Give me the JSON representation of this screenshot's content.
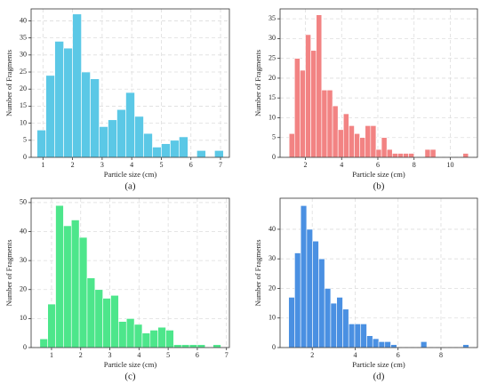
{
  "chart_data": [
    {
      "type": "histogram",
      "caption": "(a)",
      "xlabel": "Particle size (cm)",
      "ylabel": "Number of Fragments",
      "color": "#5bc8e6",
      "grid": true,
      "bins": [
        0.8,
        1.1,
        1.4,
        1.7,
        2.0,
        2.3,
        2.6,
        2.9,
        3.2,
        3.5,
        3.8,
        4.1,
        4.4,
        4.7,
        5.0,
        5.3,
        5.6,
        5.9,
        6.2,
        6.5,
        6.8,
        7.1
      ],
      "values": [
        8,
        24,
        34,
        32,
        42,
        25,
        23,
        9,
        11,
        14,
        19,
        12,
        7,
        3,
        4,
        5,
        6,
        0,
        2,
        0,
        2
      ],
      "xlim": [
        0.6,
        7.3
      ],
      "xticks": [
        1,
        2,
        3,
        4,
        5,
        6,
        7
      ],
      "ylim": [
        0,
        43.5
      ],
      "yticks": [
        0,
        5,
        10,
        15,
        20,
        25,
        30,
        35,
        40
      ]
    },
    {
      "type": "histogram",
      "caption": "(b)",
      "xlabel": "Particle size (cm)",
      "ylabel": "Number of Fragments",
      "color": "#f28383",
      "grid": true,
      "bins": [
        1.1,
        1.4,
        1.7,
        2.0,
        2.3,
        2.6,
        2.9,
        3.2,
        3.5,
        3.8,
        4.1,
        4.4,
        4.7,
        5.0,
        5.3,
        5.6,
        5.9,
        6.2,
        6.5,
        6.8,
        7.1,
        7.4,
        7.7,
        8.0,
        8.3,
        8.6,
        8.9,
        9.2,
        9.5,
        9.8,
        10.1,
        10.4,
        10.7,
        11.0
      ],
      "values": [
        6,
        25,
        22,
        31,
        27,
        36,
        17,
        17,
        13,
        7,
        11,
        8,
        6,
        5,
        8,
        8,
        2,
        5,
        2,
        1,
        1,
        1,
        1,
        0,
        0,
        2,
        2,
        0,
        0,
        0,
        0,
        0,
        1
      ],
      "xlim": [
        0.6,
        11.5
      ],
      "xticks": [
        2,
        4,
        6,
        8,
        10
      ],
      "ylim": [
        0,
        37.5
      ],
      "yticks": [
        0,
        5,
        10,
        15,
        20,
        25,
        30,
        35
      ]
    },
    {
      "type": "histogram",
      "caption": "(c)",
      "xlabel": "Particle size (cm)",
      "ylabel": "Number of Fragments",
      "color": "#4de68b",
      "grid": true,
      "bins": [
        0.6,
        0.87,
        1.14,
        1.41,
        1.68,
        1.95,
        2.22,
        2.49,
        2.76,
        3.03,
        3.3,
        3.57,
        3.84,
        4.11,
        4.38,
        4.65,
        4.92,
        5.19,
        5.46,
        5.73,
        6.0,
        6.27,
        6.54,
        6.81
      ],
      "values": [
        3,
        15,
        49,
        42,
        44,
        38,
        24,
        20,
        17,
        18,
        9,
        10,
        8,
        5,
        6,
        7,
        6,
        1,
        1,
        1,
        1,
        0,
        1
      ],
      "xlim": [
        0.3,
        7.1
      ],
      "xticks": [
        1,
        2,
        3,
        4,
        5,
        6,
        7
      ],
      "ylim": [
        0,
        51.5
      ],
      "yticks": [
        0,
        10,
        20,
        30,
        40,
        50
      ]
    },
    {
      "type": "histogram",
      "caption": "(d)",
      "xlabel": "Particle size (cm)",
      "ylabel": "Number of Fragments",
      "color": "#4a90e2",
      "grid": true,
      "bins": [
        0.9,
        1.18,
        1.46,
        1.74,
        2.02,
        2.3,
        2.58,
        2.86,
        3.14,
        3.42,
        3.7,
        3.98,
        4.26,
        4.54,
        4.82,
        5.1,
        5.38,
        5.66,
        5.94,
        6.22,
        6.5,
        6.78,
        7.06,
        7.34,
        7.62,
        7.9,
        8.18,
        8.46,
        8.74,
        9.02,
        9.3
      ],
      "values": [
        17,
        32,
        48,
        40,
        36,
        30,
        20,
        15,
        17,
        13,
        8,
        8,
        8,
        4,
        3,
        2,
        2,
        1,
        0,
        0,
        0,
        0,
        2,
        0,
        0,
        0,
        0,
        0,
        0,
        1
      ],
      "xlim": [
        0.5,
        9.7
      ],
      "xticks": [
        2,
        4,
        6,
        8
      ],
      "ylim": [
        0,
        50.5
      ],
      "yticks": [
        0,
        10,
        20,
        30,
        40
      ]
    }
  ]
}
